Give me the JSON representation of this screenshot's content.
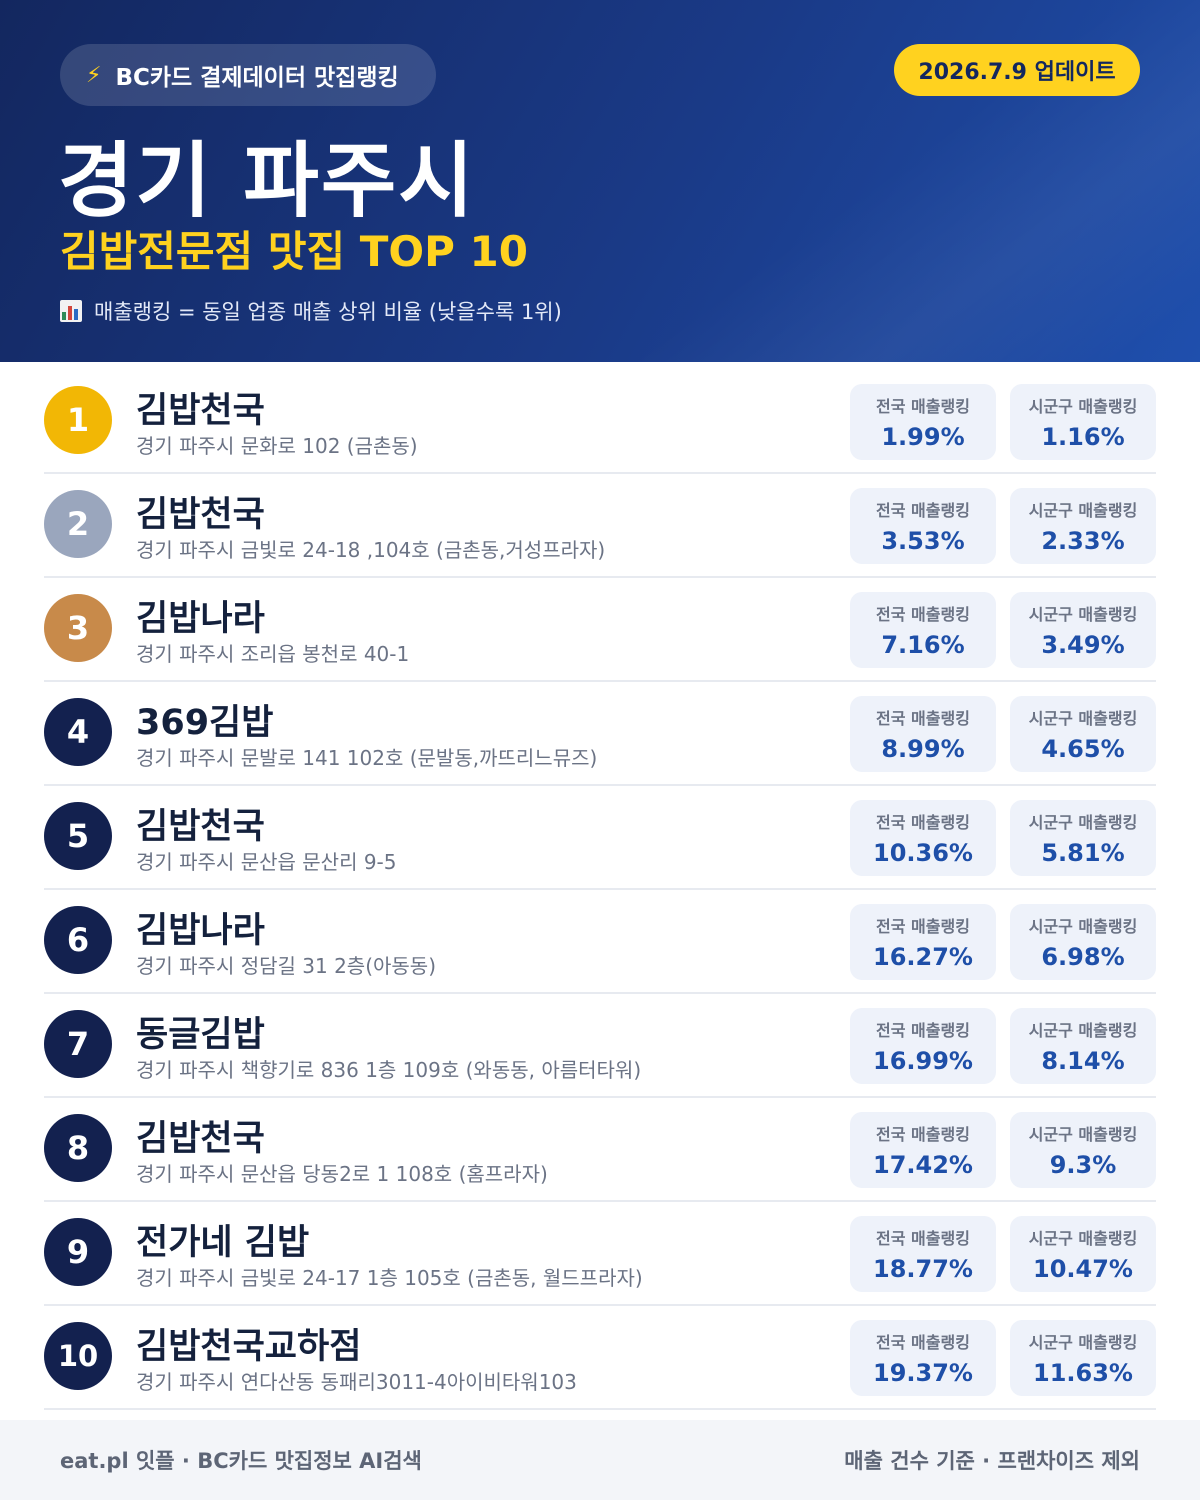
{
  "header": {
    "badge_icon": "lightning-icon",
    "badge": "BC카드 결제데이터 맛집랭킹",
    "update": "2026.7.9 업데이트",
    "title": "경기 파주시",
    "subtitle": "김밥전문점 맛집 TOP 10",
    "note_icon": "bar-chart-icon",
    "note": "매출랭킹 = 동일 업종 매출 상위 비율 (낮을수록 1위)"
  },
  "colors": {
    "rank1": "#f2b705",
    "rank2": "#9aa6bd",
    "rank3": "#c88a4a",
    "rank_default": "#13214f",
    "accent": "#ffd21f",
    "value": "#1e4fa8"
  },
  "labels": {
    "national": "전국 매출랭킹",
    "local": "시군구 매출랭킹"
  },
  "items": [
    {
      "rank": "1",
      "name": "김밥천국",
      "address": "경기 파주시 문화로 102 (금촌동)",
      "national": "1.99%",
      "local": "1.16%"
    },
    {
      "rank": "2",
      "name": "김밥천국",
      "address": "경기 파주시 금빛로 24-18 ,104호 (금촌동,거성프라자)",
      "national": "3.53%",
      "local": "2.33%"
    },
    {
      "rank": "3",
      "name": "김밥나라",
      "address": "경기 파주시 조리읍 봉천로 40-1",
      "national": "7.16%",
      "local": "3.49%"
    },
    {
      "rank": "4",
      "name": "369김밥",
      "address": "경기 파주시 문발로 141 102호 (문발동,까뜨리느뮤즈)",
      "national": "8.99%",
      "local": "4.65%"
    },
    {
      "rank": "5",
      "name": "김밥천국",
      "address": "경기 파주시 문산읍 문산리 9-5",
      "national": "10.36%",
      "local": "5.81%"
    },
    {
      "rank": "6",
      "name": "김밥나라",
      "address": "경기 파주시 정담길 31 2층(아동동)",
      "national": "16.27%",
      "local": "6.98%"
    },
    {
      "rank": "7",
      "name": "동글김밥",
      "address": "경기 파주시 책향기로 836 1층 109호 (와동동, 아름터타워)",
      "national": "16.99%",
      "local": "8.14%"
    },
    {
      "rank": "8",
      "name": "김밥천국",
      "address": "경기 파주시 문산읍 당동2로 1 108호 (홈프라자)",
      "national": "17.42%",
      "local": "9.3%"
    },
    {
      "rank": "9",
      "name": "전가네 김밥",
      "address": "경기 파주시 금빛로 24-17 1층 105호 (금촌동, 월드프라자)",
      "national": "18.77%",
      "local": "10.47%"
    },
    {
      "rank": "10",
      "name": "김밥천국교하점",
      "address": "경기 파주시 연다산동 동패리3011-4아이비타워103",
      "national": "19.37%",
      "local": "11.63%"
    }
  ],
  "footer": {
    "left": "eat.pl 잇플 · BC카드 맛집정보 AI검색",
    "right": "매출 건수 기준 · 프랜차이즈 제외"
  }
}
